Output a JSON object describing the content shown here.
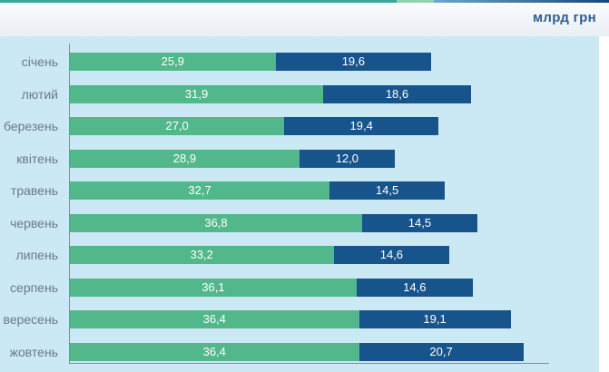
{
  "header": {
    "unit_label": "млрд грн"
  },
  "chart_data": {
    "type": "bar",
    "orientation": "horizontal",
    "stacked": true,
    "title": "млрд грн",
    "xlabel": "",
    "ylabel": "",
    "xlim": [
      0,
      60
    ],
    "grid": "off",
    "legend": "none",
    "categories": [
      "січень",
      "лютий",
      "березень",
      "квітень",
      "травень",
      "червень",
      "липень",
      "серпень",
      "вересень",
      "жовтень"
    ],
    "series": [
      {
        "name": "green",
        "color": "#52b78a",
        "values": [
          25.9,
          31.9,
          27.0,
          28.9,
          32.7,
          36.8,
          33.2,
          36.1,
          36.4,
          36.4
        ],
        "labels": [
          "25,9",
          "31,9",
          "27,0",
          "28,9",
          "32,7",
          "36,8",
          "33,2",
          "36,1",
          "36,4",
          "36,4"
        ]
      },
      {
        "name": "dark-blue",
        "color": "#17548c",
        "values": [
          19.6,
          18.6,
          19.4,
          12.0,
          14.5,
          14.5,
          14.6,
          14.6,
          19.1,
          20.7
        ],
        "labels": [
          "19,6",
          "18,6",
          "19,4",
          "12,0",
          "14,5",
          "14,5",
          "14,6",
          "14,6",
          "19,1",
          "20,7"
        ]
      }
    ]
  },
  "colors": {
    "panel_bg": "#cbe8f5",
    "axis_line": "#7e8c98",
    "category_label": "#6d7a86",
    "value_label": "#ffffff",
    "title_text": "#2c5f90",
    "accent_teal": "#38a89f",
    "accent_mint": "#8fd4b1",
    "accent_blue_start": "#6aa6d4",
    "accent_blue_end": "#16477c"
  }
}
